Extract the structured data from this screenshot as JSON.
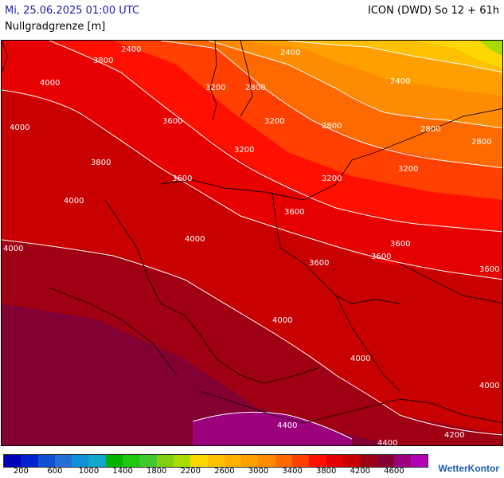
{
  "header": {
    "datetime": "Mi, 25.06.2025 01:00 UTC",
    "model": "ICON (DWD) So 12 + 61h",
    "parameter": "Nullgradgrenze [m]"
  },
  "legend": {
    "colors": [
      "#0000b4",
      "#0022d0",
      "#1050d0",
      "#2070d8",
      "#1090d8",
      "#10a8c8",
      "#00b400",
      "#20c810",
      "#40c830",
      "#80d010",
      "#a8dc00",
      "#ffd700",
      "#ffc000",
      "#ffb000",
      "#ffa000",
      "#ff8c00",
      "#ff6a00",
      "#ff4000",
      "#ff1000",
      "#e60000",
      "#c80000",
      "#a00014",
      "#820032",
      "#9c007c",
      "#b400b4"
    ],
    "ticks": [
      "200",
      "600",
      "1000",
      "1400",
      "1800",
      "2200",
      "2600",
      "3000",
      "3400",
      "3800",
      "4200",
      "4600"
    ]
  },
  "contour_labels": [
    {
      "text": "2400"
    },
    {
      "text": "3800"
    },
    {
      "text": "4000"
    },
    {
      "text": "2400"
    },
    {
      "text": "3200"
    },
    {
      "text": "2800"
    },
    {
      "text": "2400"
    },
    {
      "text": "4000"
    },
    {
      "text": "3600"
    },
    {
      "text": "2800"
    },
    {
      "text": "3200"
    },
    {
      "text": "2800"
    },
    {
      "text": "2800"
    },
    {
      "text": "3800"
    },
    {
      "text": "3200"
    },
    {
      "text": "3200"
    },
    {
      "text": "4000"
    },
    {
      "text": "3600"
    },
    {
      "text": "3200"
    },
    {
      "text": "3600"
    },
    {
      "text": "4000"
    },
    {
      "text": "3600"
    },
    {
      "text": "4000"
    },
    {
      "text": "3600"
    },
    {
      "text": "3600"
    },
    {
      "text": "3600"
    },
    {
      "text": "4000"
    },
    {
      "text": "4000"
    },
    {
      "text": "4000"
    },
    {
      "text": "4400"
    },
    {
      "text": "4400"
    },
    {
      "text": "4200"
    }
  ],
  "branding": "WetterKontor"
}
